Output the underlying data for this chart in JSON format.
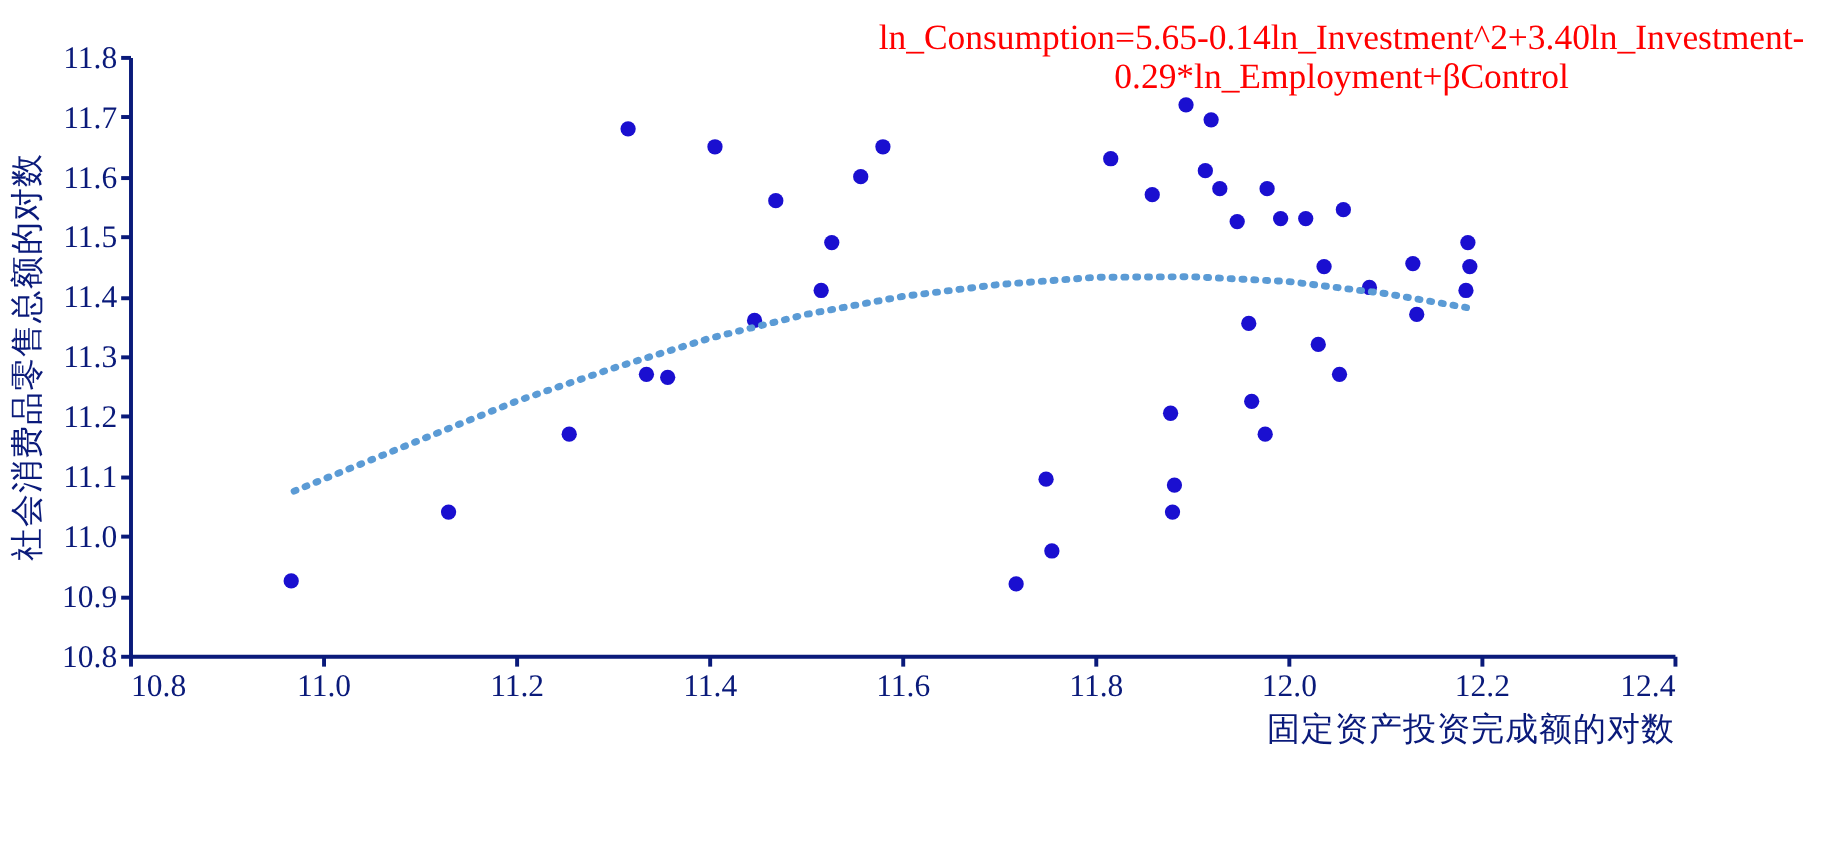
{
  "chart_data": {
    "type": "scatter",
    "title": "ln_Consumption=5.65-0.14ln_Investment^2+3.40ln_Investment-0.29*ln_Employment+βControl",
    "xlabel": "固定资产投资完成额的对数",
    "ylabel": "社会消费品零售总额的对数",
    "xlim": [
      10.8,
      12.4
    ],
    "xticks": [
      {
        "value": 10.8,
        "label": "10.8"
      },
      {
        "value": 11.0,
        "label": "11.0"
      },
      11.2,
      11.4,
      11.6,
      11.8,
      {
        "value": 12.0,
        "label": "12.0"
      },
      12.2,
      12.4
    ],
    "ylim": [
      10.8,
      11.8
    ],
    "yticks": [
      10.8,
      10.9,
      {
        "value": 11.0,
        "label": "11.0"
      },
      11.1,
      11.2,
      11.3,
      11.4,
      11.5,
      11.6,
      11.7,
      11.8
    ],
    "grid": false,
    "series": [
      {
        "marker": "circle",
        "color": "#1a0fd0",
        "x": [
          10.967,
          11.13,
          11.255,
          11.316,
          11.335,
          11.357,
          11.406,
          11.469,
          11.447,
          11.516,
          11.527,
          11.557,
          11.58,
          11.718,
          11.749,
          11.755,
          11.816,
          11.859,
          11.878,
          11.882,
          11.88,
          11.894,
          11.92,
          11.914,
          11.929,
          11.947,
          11.959,
          11.962,
          11.978,
          11.976,
          11.992,
          12.018,
          12.031,
          12.037,
          12.053,
          12.057,
          12.084,
          12.129,
          12.133,
          12.186,
          12.188,
          12.184
        ],
        "values": [
          10.925,
          11.04,
          11.17,
          11.68,
          11.27,
          11.265,
          11.65,
          11.56,
          11.36,
          11.41,
          11.49,
          11.6,
          11.65,
          10.92,
          11.095,
          10.975,
          11.63,
          11.57,
          11.205,
          11.085,
          11.04,
          11.72,
          11.695,
          11.61,
          11.58,
          11.525,
          11.355,
          11.225,
          11.58,
          11.17,
          11.53,
          11.53,
          11.32,
          11.45,
          11.27,
          11.545,
          11.415,
          11.455,
          11.37,
          11.49,
          11.45,
          11.41
        ]
      },
      {
        "type": "line",
        "color": "#5b9bd5",
        "line_style": "dotted",
        "x": [
          10.97,
          11.1,
          11.2,
          11.3,
          11.4,
          11.5,
          11.6,
          11.7,
          11.8,
          11.9,
          12.0,
          12.1,
          12.19
        ],
        "values": [
          11.075,
          11.16,
          11.225,
          11.28,
          11.33,
          11.37,
          11.4,
          11.42,
          11.432,
          11.433,
          11.425,
          11.405,
          11.38
        ]
      }
    ]
  }
}
